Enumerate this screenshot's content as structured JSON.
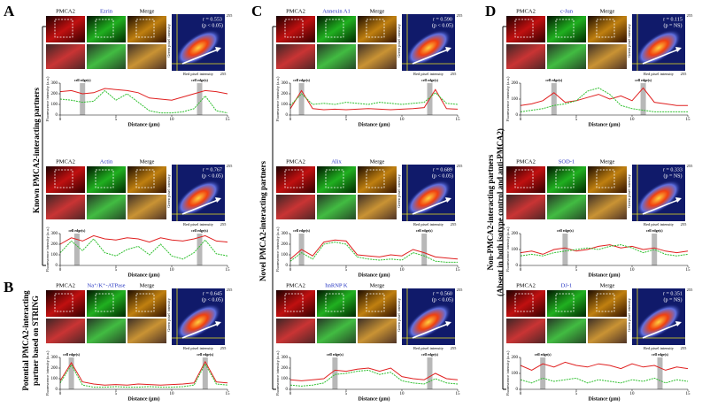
{
  "panel_letters": [
    "A",
    "B",
    "C",
    "D"
  ],
  "side_labels": {
    "A": [
      "Known PMCA2-interacting partners"
    ],
    "B": [
      "Potential PMCA2-interacting",
      "partner based on STRING"
    ],
    "C": [
      "Novel PMCA2-interacting partners"
    ],
    "D": [
      "Non-PMCA2-interacting partners",
      "(Absent in both isotype control and anti-PMCA2)"
    ]
  },
  "trace_x": [
    0,
    1,
    2,
    3,
    4,
    5,
    6,
    7,
    8,
    9,
    10,
    11,
    12,
    13,
    14,
    15
  ],
  "panels": [
    {
      "images": [
        "PMCA2",
        "Ezrin",
        "Merge"
      ],
      "r": "r = 0.553",
      "p": "(p < 0.05)",
      "scatter_x_label": "Red pixel intensity",
      "scatter_y_label": "Green pixel intensity",
      "scatter_xtick": 255,
      "scatter_ytick": 255,
      "y_label": "Fluorescence intensity (a.u.)",
      "x_label": "Distance (μm)",
      "yticks": [
        0,
        100,
        200,
        300
      ],
      "xticks": [
        0,
        5,
        10,
        15
      ],
      "edges": [
        {
          "x": 2,
          "label": "cell edge(s)"
        },
        {
          "x": 12.5,
          "label": "cell edge(s)"
        }
      ],
      "red": [
        220,
        230,
        200,
        210,
        250,
        240,
        230,
        210,
        160,
        150,
        140,
        170,
        200,
        230,
        220,
        200
      ],
      "green": [
        150,
        140,
        120,
        130,
        230,
        140,
        200,
        120,
        40,
        20,
        20,
        30,
        60,
        180,
        40,
        20
      ]
    },
    {
      "images": [
        "PMCA2",
        "Actin",
        "Merge"
      ],
      "r": "r = 0.767",
      "p": "(p < 0.05)",
      "scatter_x_label": "Red pixel intensity",
      "scatter_y_label": "Green pixel intensity",
      "scatter_xtick": 255,
      "scatter_ytick": 255,
      "y_label": "Fluorescence intensity (a.u.)",
      "x_label": "Distance (μm)",
      "yticks": [
        0,
        100,
        200,
        300
      ],
      "xticks": [
        0,
        5,
        10,
        15
      ],
      "edges": [
        {
          "x": 1.5,
          "label": "cell edge(s)"
        },
        {
          "x": 12.5,
          "label": "cell edge(s)"
        }
      ],
      "red": [
        200,
        260,
        230,
        280,
        250,
        240,
        260,
        250,
        220,
        260,
        240,
        230,
        250,
        280,
        230,
        220
      ],
      "green": [
        120,
        230,
        140,
        250,
        120,
        90,
        150,
        180,
        100,
        200,
        90,
        60,
        120,
        240,
        110,
        90
      ]
    },
    {
      "images": [
        "PMCA2",
        "Na⁺/K⁺-ATPase",
        "Merge"
      ],
      "r": "r = 0.645",
      "p": "(p < 0.05)",
      "scatter_x_label": "Red pixel intensity",
      "scatter_y_label": "Green pixel intensity",
      "scatter_xtick": 255,
      "scatter_ytick": 255,
      "y_label": "Fluorescence intensity (a.u.)",
      "x_label": "Distance (μm)",
      "yticks": [
        0,
        100,
        200,
        300
      ],
      "xticks": [
        0,
        5,
        10,
        15
      ],
      "edges": [
        {
          "x": 1,
          "label": "cell edge(s)"
        },
        {
          "x": 13,
          "label": "cell edge(s)"
        }
      ],
      "red": [
        80,
        250,
        70,
        50,
        40,
        45,
        40,
        50,
        45,
        40,
        45,
        50,
        60,
        260,
        70,
        60
      ],
      "green": [
        60,
        230,
        40,
        20,
        20,
        25,
        20,
        20,
        25,
        20,
        20,
        25,
        40,
        240,
        50,
        40
      ]
    },
    {
      "images": [
        "PMCA2",
        "Annexin A1",
        "Merge"
      ],
      "r": "r = 0.590",
      "p": "(p < 0.05)",
      "scatter_x_label": "Red pixel intensity",
      "scatter_y_label": "Green pixel intensity",
      "scatter_xtick": 255,
      "scatter_ytick": 255,
      "y_label": "Fluorescence intensity (a.u.)",
      "x_label": "Distance (μm)",
      "yticks": [
        0,
        100,
        200,
        300
      ],
      "xticks": [
        0,
        5,
        10,
        15
      ],
      "edges": [
        {
          "x": 1,
          "label": "cell edge(s)"
        },
        {
          "x": 12.5,
          "label": "cell edge(s)"
        }
      ],
      "red": [
        60,
        230,
        60,
        50,
        55,
        50,
        55,
        60,
        55,
        50,
        55,
        60,
        70,
        240,
        60,
        55
      ],
      "green": [
        90,
        200,
        100,
        110,
        100,
        120,
        110,
        100,
        120,
        110,
        100,
        110,
        120,
        210,
        110,
        100
      ]
    },
    {
      "images": [
        "PMCA2",
        "Alix",
        "Merge"
      ],
      "r": "r = 0.689",
      "p": "(p < 0.05)",
      "scatter_x_label": "Red pixel intensity",
      "scatter_y_label": "Green pixel intensity",
      "scatter_xtick": 255,
      "scatter_ytick": 255,
      "y_label": "Fluorescence intensity (a.u.)",
      "x_label": "Distance (μm)",
      "yticks": [
        0,
        100,
        200,
        300
      ],
      "xticks": [
        0,
        5,
        10,
        15
      ],
      "edges": [
        {
          "x": 1,
          "label": "cell edge(s)"
        },
        {
          "x": 12,
          "label": "cell edge(s)"
        }
      ],
      "red": [
        60,
        150,
        90,
        220,
        240,
        230,
        100,
        90,
        80,
        100,
        90,
        150,
        120,
        80,
        70,
        60
      ],
      "green": [
        40,
        120,
        60,
        200,
        220,
        200,
        80,
        60,
        50,
        60,
        50,
        120,
        90,
        40,
        30,
        30
      ]
    },
    {
      "images": [
        "PMCA2",
        "hnRNP K",
        "Merge"
      ],
      "r": "r = 0.560",
      "p": "(p < 0.05)",
      "scatter_x_label": "Red pixel intensity",
      "scatter_y_label": "Green pixel intensity",
      "scatter_xtick": 255,
      "scatter_ytick": 255,
      "y_label": "Fluorescence intensity (a.u.)",
      "x_label": "Distance (μm)",
      "yticks": [
        0,
        100,
        200,
        300
      ],
      "xticks": [
        0,
        5,
        10,
        15
      ],
      "edges": [
        {
          "x": 4,
          "label": "cell edge(s)"
        },
        {
          "x": 12.5,
          "label": "cell edge(s)"
        }
      ],
      "red": [
        90,
        80,
        90,
        100,
        180,
        170,
        190,
        200,
        170,
        200,
        120,
        100,
        90,
        150,
        100,
        90
      ],
      "green": [
        40,
        30,
        40,
        60,
        140,
        150,
        170,
        180,
        140,
        160,
        80,
        60,
        50,
        100,
        60,
        50
      ]
    },
    {
      "images": [
        "PMCA2",
        "c-Jun",
        "Merge"
      ],
      "r": "r = 0.115",
      "p": "(p = NS)",
      "scatter_x_label": "Red pixel intensity",
      "scatter_y_label": "Green pixel intensity",
      "scatter_xtick": 255,
      "scatter_ytick": 255,
      "y_label": "Fluorescence intensity (a.u.)",
      "x_label": "Distance (μm)",
      "yticks": [
        0,
        100,
        200
      ],
      "xticks": [
        0,
        5,
        10,
        15
      ],
      "edges": [
        {
          "x": 3,
          "label": "cell edge(s)"
        },
        {
          "x": 11,
          "label": "cell edge(s)"
        }
      ],
      "red": [
        60,
        70,
        90,
        140,
        80,
        90,
        110,
        130,
        100,
        120,
        90,
        170,
        80,
        70,
        60,
        60
      ],
      "green": [
        20,
        30,
        40,
        60,
        70,
        90,
        150,
        170,
        130,
        60,
        40,
        30,
        20,
        20,
        20,
        20
      ]
    },
    {
      "images": [
        "PMCA2",
        "SOD-1",
        "Merge"
      ],
      "r": "r = 0.333",
      "p": "(p = NS)",
      "scatter_x_label": "Red pixel intensity",
      "scatter_y_label": "Green pixel intensity",
      "scatter_xtick": 255,
      "scatter_ytick": 255,
      "y_label": "Fluorescence intensity (a.u.)",
      "x_label": "Distance (μm)",
      "yticks": [
        0,
        100,
        200
      ],
      "xticks": [
        0,
        5,
        10,
        15
      ],
      "edges": [
        {
          "x": 4,
          "label": "cell edge(s)"
        },
        {
          "x": 12,
          "label": "cell edge(s)"
        }
      ],
      "red": [
        80,
        90,
        70,
        100,
        110,
        90,
        100,
        120,
        130,
        110,
        120,
        100,
        110,
        90,
        80,
        90
      ],
      "green": [
        60,
        70,
        60,
        80,
        90,
        100,
        110,
        100,
        120,
        130,
        110,
        80,
        100,
        70,
        60,
        70
      ]
    },
    {
      "images": [
        "PMCA2",
        "DJ-1",
        "Merge"
      ],
      "r": "r = 0.351",
      "p": "(p = NS)",
      "scatter_x_label": "Red pixel intensity",
      "scatter_y_label": "Green pixel intensity",
      "scatter_xtick": 255,
      "scatter_ytick": 255,
      "y_label": "Fluorescence intensity (a.u.)",
      "x_label": "Distance (μm)",
      "yticks": [
        0,
        100,
        200
      ],
      "xticks": [
        0,
        5,
        10,
        15
      ],
      "edges": [
        {
          "x": 2,
          "label": "cell edge(s)"
        },
        {
          "x": 12.5,
          "label": "cell edge(s)"
        }
      ],
      "red": [
        150,
        120,
        160,
        140,
        170,
        150,
        140,
        160,
        150,
        130,
        160,
        140,
        150,
        120,
        140,
        130
      ],
      "green": [
        60,
        40,
        70,
        50,
        60,
        70,
        40,
        60,
        50,
        40,
        60,
        50,
        70,
        40,
        60,
        50
      ]
    }
  ]
}
